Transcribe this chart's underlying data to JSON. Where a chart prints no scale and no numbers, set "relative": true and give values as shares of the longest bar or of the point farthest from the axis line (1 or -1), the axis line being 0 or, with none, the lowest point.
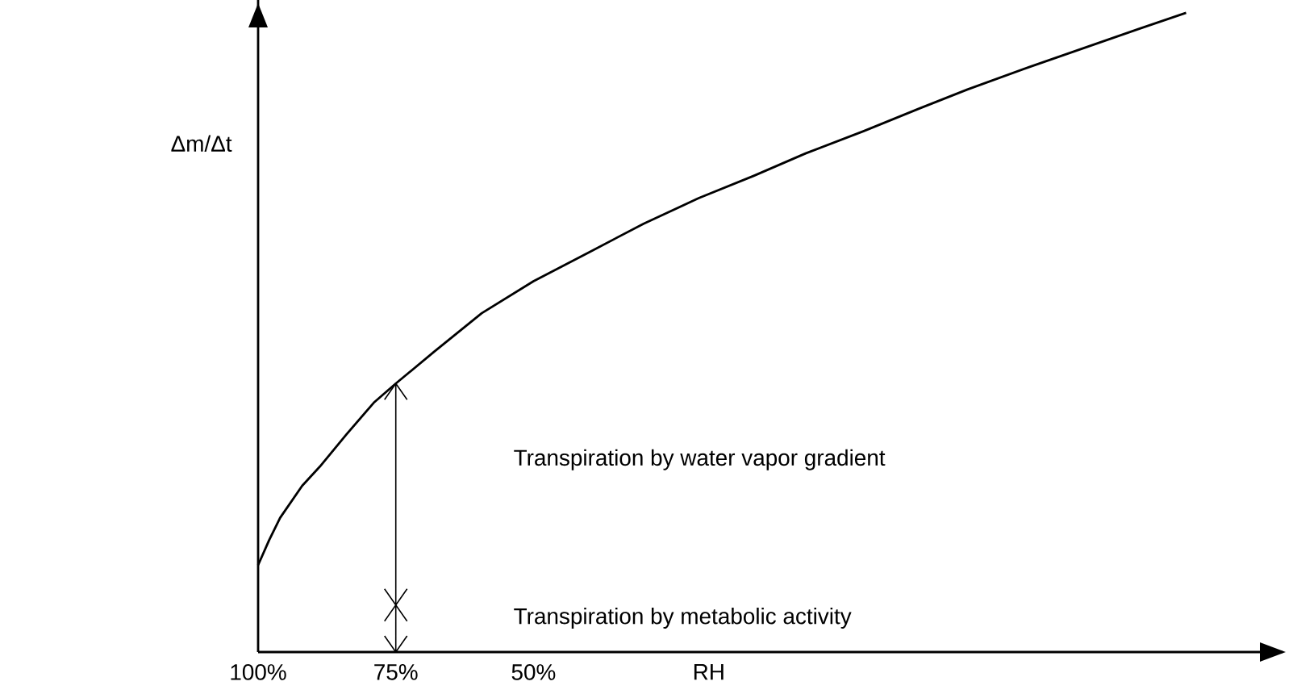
{
  "chart_data": {
    "type": "line",
    "relative": true,
    "xlabel": "RH",
    "ylabel": "Δm/Δt",
    "xlim": [
      100,
      -86
    ],
    "xticks": [
      {
        "value": 100,
        "label": "100%"
      },
      {
        "value": 75,
        "label": "75%"
      },
      {
        "value": 50,
        "label": "50%"
      }
    ],
    "x": [
      100,
      98,
      96,
      92,
      88.8,
      84,
      79,
      75,
      68,
      59.4,
      50,
      40,
      30,
      20,
      10,
      0.6,
      -10,
      -20,
      -28.8,
      -40,
      -50,
      -60,
      -68.5
    ],
    "values": [
      0.136,
      0.175,
      0.21,
      0.26,
      0.29,
      0.34,
      0.39,
      0.42,
      0.47,
      0.53,
      0.58,
      0.625,
      0.67,
      0.71,
      0.745,
      0.78,
      0.815,
      0.85,
      0.88,
      0.915,
      0.945,
      0.975,
      1.0
    ],
    "color": "#000000",
    "annotations": [
      "Transpiration by water vapor gradient",
      "Transpiration by metabolic activity"
    ]
  }
}
